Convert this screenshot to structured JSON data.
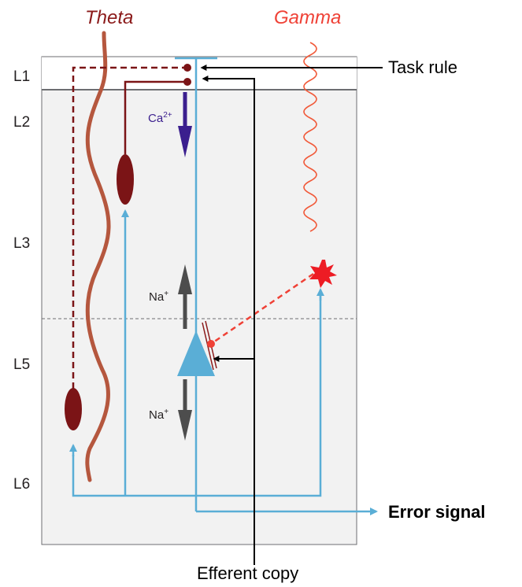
{
  "layers": [
    "L1",
    "L2",
    "L3",
    "L5",
    "L6"
  ],
  "rhythms": {
    "theta": {
      "label": "Theta",
      "color": "#8b1a1a"
    },
    "gamma": {
      "label": "Gamma",
      "color": "#ef4136"
    }
  },
  "ions": {
    "calcium": {
      "base": "Ca",
      "charge": "2+"
    },
    "sodium_upper": {
      "base": "Na",
      "charge": "+"
    },
    "sodium_lower": {
      "base": "Na",
      "charge": "+"
    }
  },
  "external": {
    "task_rule": "Task rule",
    "efferent_copy": "Efferent copy",
    "error_signal": "Error signal"
  },
  "colors": {
    "pyramidal": "#5aaed6",
    "interneuron": "#7b1416",
    "theta_wave": "#b5573e",
    "gamma_wave": "#f15a3a",
    "calcium_arrow": "#3b1f8e",
    "sodium_arrow": "#4d4d4d",
    "cortex_fill": "#f2f2f2"
  }
}
